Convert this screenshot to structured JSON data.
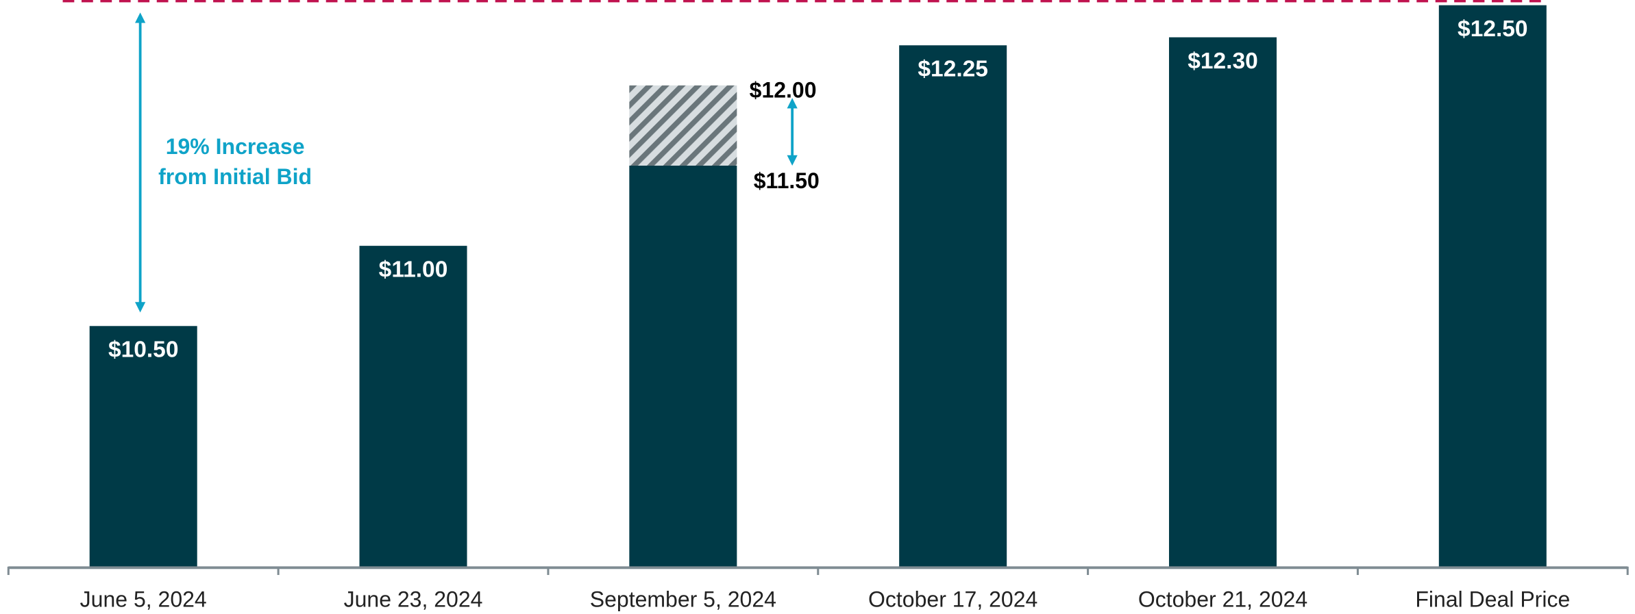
{
  "chart_data": {
    "type": "bar",
    "categories": [
      "June 5, 2024",
      "June 23, 2024",
      "September 5, 2024",
      "October 17, 2024",
      "October 21, 2024",
      "Final Deal Price"
    ],
    "values": [
      10.5,
      11.0,
      11.5,
      12.25,
      12.3,
      12.5
    ],
    "value_labels": [
      "$10.50",
      "$11.00",
      "$11.50",
      "$12.25",
      "$12.30",
      "$12.50"
    ],
    "high_values": [
      null,
      null,
      12.0,
      null,
      null,
      null
    ],
    "high_value_labels": [
      null,
      null,
      "$12.00",
      null,
      null,
      null
    ],
    "color": "#003a47",
    "range_color": "#0fa3c8",
    "reference_line": {
      "value": 12.5,
      "color": "#c0134f"
    },
    "annotation": {
      "lines": [
        "19% Increase",
        "from Initial Bid"
      ],
      "color": "#0fa3c8"
    },
    "ylim": [
      9,
      12.5
    ],
    "grid": false
  }
}
